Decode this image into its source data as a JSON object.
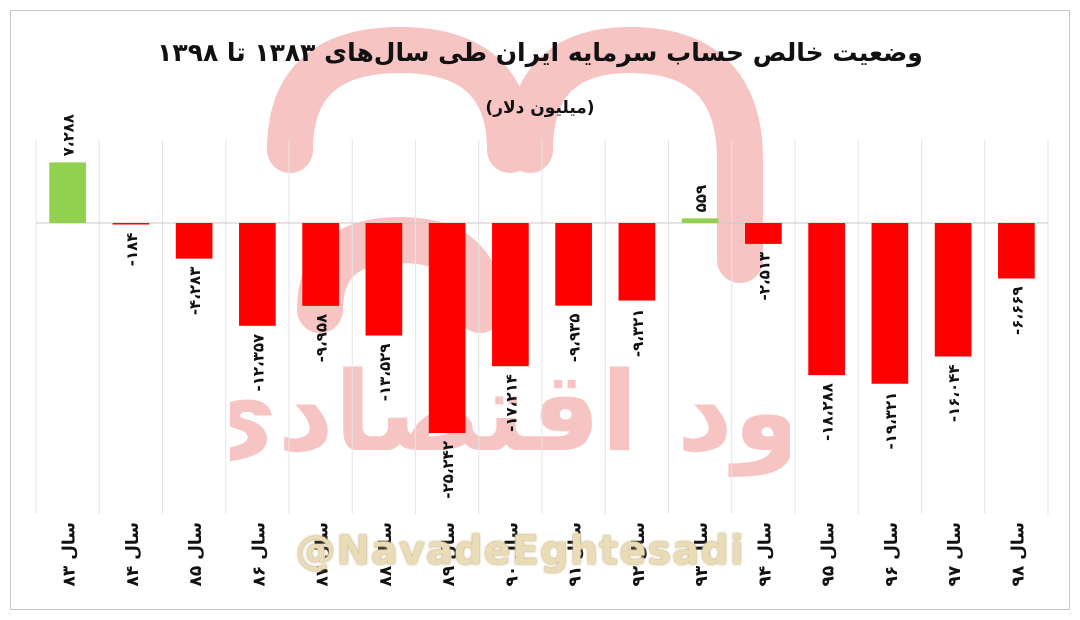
{
  "chart_data": {
    "type": "bar",
    "title": "وضعیت خالص حساب سرمایه ایران طی سال‌های ۱۳۸۳ تا ۱۳۹۸",
    "subtitle": "(میلیون دلار)",
    "categories": [
      "سال ۸۳",
      "سال ۸۴",
      "سال ۸۵",
      "سال ۸۶",
      "سال ۸۷",
      "سال ۸۸",
      "سال ۸۹",
      "سال ۹۰",
      "سال ۹۱",
      "سال ۹۲",
      "سال ۹۳",
      "سال ۹۴",
      "سال ۹۵",
      "سال ۹۶",
      "سال ۹۷",
      "سال ۹۸"
    ],
    "values": [
      7288,
      -184,
      -4283,
      -12357,
      -9958,
      -13529,
      -25242,
      -17214,
      -9935,
      -9321,
      559,
      -2513,
      -18288,
      -19321,
      -16044,
      -6669
    ],
    "data_labels": [
      "۷،۲۸۸",
      "-۱۸۴",
      "-۴،۲۸۳",
      "-۱۲،۳۵۷",
      "-۹،۹۵۸",
      "-۱۳،۵۲۹",
      "-۲۵،۲۴۲",
      "-۱۷،۲۱۴",
      "-۹،۹۳۵",
      "-۹،۳۲۱",
      "۵۵۹",
      "-۲،۵۱۳",
      "-۱۸،۲۸۸",
      "-۱۹،۳۲۱",
      "-۱۶،۰۴۴",
      "-۶،۶۶۹"
    ],
    "ylim": [
      -35000,
      10000
    ],
    "colors": {
      "positive": "#92d050",
      "negative": "#ff0000"
    },
    "grid": "vertical"
  },
  "watermark": {
    "handle": "@NavadeEghtesadi",
    "text": "نود اقتصادی"
  }
}
